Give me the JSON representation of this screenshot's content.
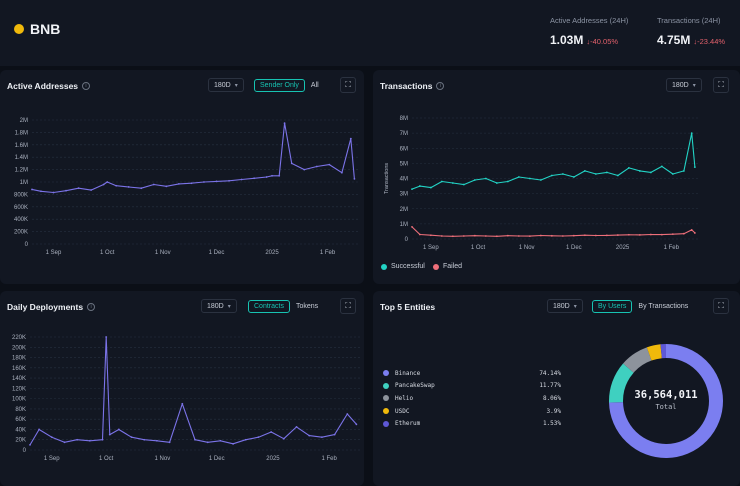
{
  "header": {
    "brand": "BNB",
    "kpis": [
      {
        "label": "Active Addresses (24H)",
        "value": "1.03M",
        "delta": "↓-40.05%"
      },
      {
        "label": "Transactions (24H)",
        "value": "4.75M",
        "delta": "↓-23.44%"
      }
    ]
  },
  "colors": {
    "line": "#7b73e8",
    "successful": "#22d3c5",
    "failed": "#ef6f7a",
    "background": "#0b0f17",
    "panel": "#121722",
    "accent": "#17c3b2"
  },
  "panels": {
    "active_addresses": {
      "title": "Active Addresses",
      "range": "180D",
      "toggle": [
        "Sender Only",
        "All"
      ],
      "active_toggle": "Sender Only",
      "y_ticks": [
        "2M",
        "1.8M",
        "1.6M",
        "1.4M",
        "1.2M",
        "1M",
        "800K",
        "600K",
        "400K",
        "200K",
        "0"
      ],
      "x_ticks": [
        "1 Sep",
        "1 Oct",
        "1 Nov",
        "1 Dec",
        "2025",
        "1 Feb"
      ]
    },
    "transactions": {
      "title": "Transactions",
      "range": "180D",
      "ylabel": "Transactions",
      "y_ticks": [
        "8M",
        "7M",
        "6M",
        "5M",
        "4M",
        "3M",
        "2M",
        "1M",
        "0"
      ],
      "x_ticks": [
        "1 Sep",
        "1 Oct",
        "1 Nov",
        "1 Dec",
        "2025",
        "1 Feb"
      ],
      "legend": [
        "Successful",
        "Failed"
      ]
    },
    "daily_deployments": {
      "title": "Daily Deployments",
      "range": "180D",
      "toggle": [
        "Contracts",
        "Tokens"
      ],
      "active_toggle": "Contracts",
      "y_ticks": [
        "220K",
        "200K",
        "180K",
        "160K",
        "140K",
        "120K",
        "100K",
        "80K",
        "60K",
        "40K",
        "20K",
        "0"
      ],
      "x_ticks": [
        "1 Sep",
        "1 Oct",
        "1 Nov",
        "1 Dec",
        "2025",
        "1 Feb"
      ]
    },
    "top_entities": {
      "title": "Top 5 Entities",
      "range": "180D",
      "toggle": [
        "By Users",
        "By Transactions"
      ],
      "active_toggle": "By Users",
      "entities": [
        {
          "name": "Binance",
          "pct": "74.14%",
          "value": 74.14,
          "color": "#7b7ef0"
        },
        {
          "name": "PancakeSwap",
          "pct": "11.77%",
          "value": 11.77,
          "color": "#3fd0c0"
        },
        {
          "name": "Helio",
          "pct": "8.06%",
          "value": 8.06,
          "color": "#8d939c"
        },
        {
          "name": "USDC",
          "pct": "3.9%",
          "value": 3.9,
          "color": "#f0b90b"
        },
        {
          "name": "Etherum",
          "pct": "1.53%",
          "value": 1.53,
          "color": "#5e58d6"
        }
      ],
      "total": "36,564,011",
      "total_label": "Total"
    }
  },
  "chart_data": [
    {
      "type": "line",
      "ylim": [
        0,
        2000000
      ],
      "x": [
        "2024-08-20",
        "2024-08-25",
        "2024-09-01",
        "2024-09-08",
        "2024-09-15",
        "2024-09-22",
        "2024-09-29",
        "2024-10-01",
        "2024-10-06",
        "2024-10-13",
        "2024-10-20",
        "2024-10-27",
        "2024-11-03",
        "2024-11-10",
        "2024-11-17",
        "2024-11-24",
        "2024-12-01",
        "2024-12-08",
        "2024-12-15",
        "2024-12-22",
        "2024-12-29",
        "2025-01-01",
        "2025-01-05",
        "2025-01-08",
        "2025-01-12",
        "2025-01-19",
        "2025-01-26",
        "2025-02-02",
        "2025-02-09",
        "2025-02-14",
        "2025-02-16"
      ],
      "series": [
        {
          "values": [
            880000,
            850000,
            830000,
            860000,
            900000,
            870000,
            960000,
            1000000,
            940000,
            920000,
            900000,
            960000,
            930000,
            970000,
            980000,
            1000000,
            1010000,
            1020000,
            1040000,
            1060000,
            1080000,
            1100000,
            1100000,
            1950000,
            1300000,
            1200000,
            1250000,
            1280000,
            1150000,
            1700000,
            1050000
          ]
        }
      ]
    },
    {
      "type": "line",
      "ylim": [
        0,
        8000000
      ],
      "ylabel": "Transactions",
      "x": [
        "2024-08-20",
        "2024-08-25",
        "2024-09-01",
        "2024-09-08",
        "2024-09-15",
        "2024-09-22",
        "2024-09-29",
        "2024-10-06",
        "2024-10-13",
        "2024-10-20",
        "2024-10-27",
        "2024-11-03",
        "2024-11-10",
        "2024-11-17",
        "2024-11-24",
        "2024-12-01",
        "2024-12-08",
        "2024-12-15",
        "2024-12-22",
        "2024-12-29",
        "2025-01-05",
        "2025-01-12",
        "2025-01-19",
        "2025-01-26",
        "2025-02-02",
        "2025-02-09",
        "2025-02-14",
        "2025-02-16"
      ],
      "series": [
        {
          "name": "Successful",
          "values": [
            3300000,
            3500000,
            3400000,
            3800000,
            3700000,
            3600000,
            3900000,
            4000000,
            3700000,
            3800000,
            4100000,
            4000000,
            3900000,
            4200000,
            4300000,
            4100000,
            4500000,
            4300000,
            4400000,
            4200000,
            4700000,
            4500000,
            4400000,
            4800000,
            4300000,
            4500000,
            7000000,
            4750000
          ]
        },
        {
          "name": "Failed",
          "values": [
            800000,
            300000,
            250000,
            200000,
            180000,
            200000,
            220000,
            200000,
            180000,
            220000,
            200000,
            190000,
            230000,
            210000,
            200000,
            220000,
            250000,
            230000,
            240000,
            260000,
            280000,
            270000,
            300000,
            290000,
            320000,
            350000,
            600000,
            400000
          ]
        }
      ]
    },
    {
      "type": "line",
      "ylim": [
        0,
        220000
      ],
      "x": [
        "2024-08-20",
        "2024-08-25",
        "2024-09-01",
        "2024-09-08",
        "2024-09-15",
        "2024-09-22",
        "2024-09-29",
        "2024-10-01",
        "2024-10-03",
        "2024-10-08",
        "2024-10-15",
        "2024-10-22",
        "2024-10-29",
        "2024-11-05",
        "2024-11-12",
        "2024-11-19",
        "2024-11-26",
        "2024-12-03",
        "2024-12-10",
        "2024-12-17",
        "2024-12-24",
        "2024-12-31",
        "2025-01-07",
        "2025-01-14",
        "2025-01-21",
        "2025-01-28",
        "2025-02-04",
        "2025-02-11",
        "2025-02-16"
      ],
      "series": [
        {
          "values": [
            10000,
            40000,
            25000,
            15000,
            20000,
            18000,
            20000,
            220000,
            30000,
            40000,
            25000,
            20000,
            18000,
            15000,
            90000,
            20000,
            15000,
            18000,
            12000,
            20000,
            25000,
            35000,
            22000,
            45000,
            28000,
            25000,
            30000,
            70000,
            50000
          ]
        }
      ]
    },
    {
      "type": "pie",
      "categories": [
        "Binance",
        "PancakeSwap",
        "Helio",
        "USDC",
        "Etherum"
      ],
      "values": [
        74.14,
        11.77,
        8.06,
        3.9,
        1.53
      ]
    }
  ]
}
